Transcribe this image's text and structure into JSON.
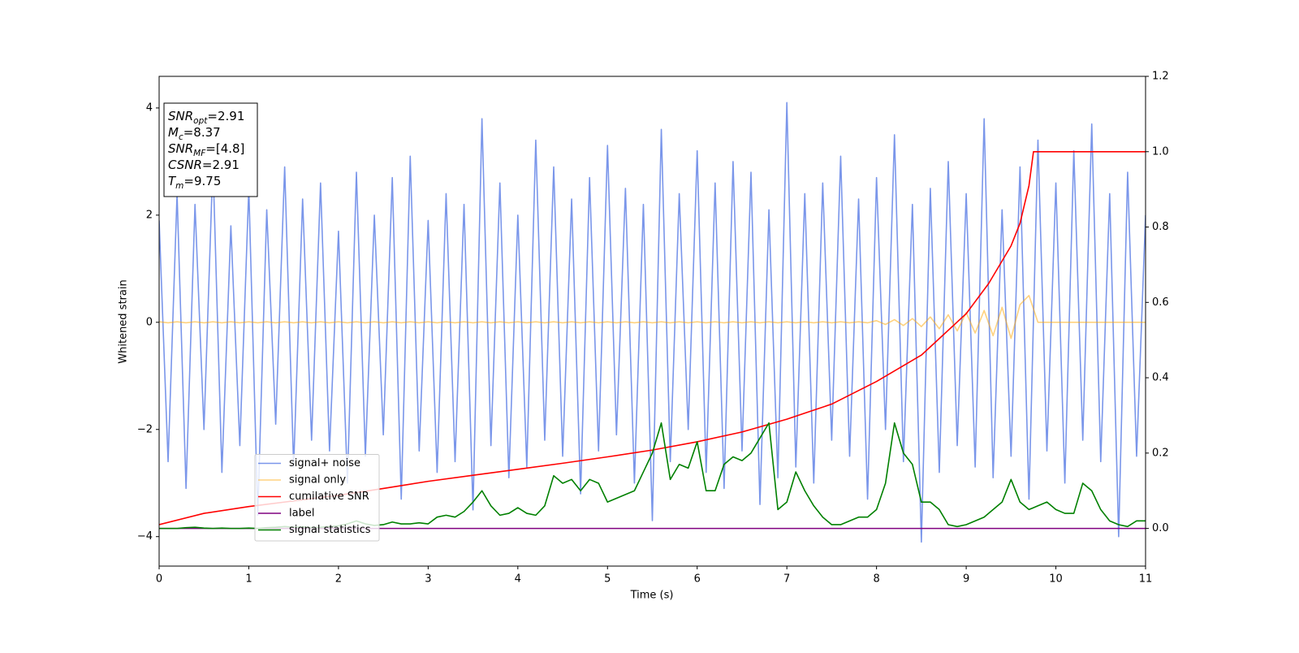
{
  "chart_data": {
    "type": "line",
    "xlabel": "Time (s)",
    "ylabel": "Whitened strain",
    "xlim": [
      0,
      11
    ],
    "xticks": [
      0,
      1,
      2,
      3,
      4,
      5,
      6,
      7,
      8,
      9,
      10,
      11
    ],
    "ylim": [
      -4.55,
      4.59
    ],
    "yticks": [
      {
        "value": -4,
        "label": "−4"
      },
      {
        "value": -2,
        "label": "−2"
      },
      0,
      2,
      4
    ],
    "y2lim": [
      -0.1,
      1.2
    ],
    "y2ticks": [
      {
        "value": 0,
        "label": "0.0"
      },
      {
        "value": 0.2,
        "label": "0.2"
      },
      {
        "value": 0.4,
        "label": "0.4"
      },
      {
        "value": 0.6,
        "label": "0.6"
      },
      {
        "value": 0.8,
        "label": "0.8"
      },
      {
        "value": 1,
        "label": "1.0"
      },
      {
        "value": 1.2,
        "label": "1.2"
      }
    ],
    "legend": "lower left",
    "annotations": [
      {
        "text": "SNR",
        "sub": "opt",
        "rest": "=2.91"
      },
      {
        "text": "M",
        "sub": "c",
        "rest": "=8.37"
      },
      {
        "text": "SNR",
        "sub": "MF",
        "rest": "=[4.8]"
      },
      {
        "text": "CSNR",
        "rest": "=2.91"
      },
      {
        "text": "T",
        "sub": "m",
        "rest": "=9.75"
      }
    ],
    "x": [
      0,
      0.1,
      0.2,
      0.3,
      0.4,
      0.5,
      0.6,
      0.7,
      0.8,
      0.9,
      1,
      1.1,
      1.2,
      1.3,
      1.4,
      1.5,
      1.6,
      1.7,
      1.8,
      1.9,
      2,
      2.1,
      2.2,
      2.3,
      2.4,
      2.5,
      2.6,
      2.7,
      2.8,
      2.9,
      3,
      3.1,
      3.2,
      3.3,
      3.4,
      3.5,
      3.6,
      3.7,
      3.8,
      3.9,
      4,
      4.1,
      4.2,
      4.3,
      4.4,
      4.5,
      4.6,
      4.7,
      4.8,
      4.9,
      5,
      5.1,
      5.2,
      5.3,
      5.4,
      5.5,
      5.6,
      5.7,
      5.8,
      5.9,
      6,
      6.1,
      6.2,
      6.3,
      6.4,
      6.5,
      6.6,
      6.7,
      6.8,
      6.9,
      7,
      7.1,
      7.2,
      7.3,
      7.4,
      7.5,
      7.6,
      7.7,
      7.8,
      7.9,
      8,
      8.1,
      8.2,
      8.3,
      8.4,
      8.5,
      8.6,
      8.7,
      8.8,
      8.9,
      9,
      9.1,
      9.2,
      9.3,
      9.4,
      9.5,
      9.6,
      9.7,
      9.8,
      9.9,
      10,
      10.1,
      10.2,
      10.3,
      10.4,
      10.5,
      10.6,
      10.7,
      10.8,
      10.9,
      11
    ],
    "series": [
      {
        "name": "signal+ noise",
        "color": "#4169e1",
        "alpha": 0.7,
        "axis": "y",
        "values": [
          1.9,
          -2.6,
          2.4,
          -3.1,
          2.2,
          -2.0,
          3.0,
          -2.8,
          1.8,
          -2.3,
          2.5,
          -3.6,
          2.1,
          -1.9,
          2.9,
          -2.7,
          2.3,
          -2.2,
          2.6,
          -2.4,
          1.7,
          -3.0,
          2.8,
          -2.5,
          2.0,
          -2.1,
          2.7,
          -3.3,
          3.1,
          -2.4,
          1.9,
          -2.8,
          2.4,
          -2.6,
          2.2,
          -3.5,
          3.8,
          -2.3,
          2.6,
          -2.9,
          2.0,
          -2.7,
          3.4,
          -2.2,
          2.9,
          -2.5,
          2.3,
          -3.2,
          2.7,
          -2.4,
          3.3,
          -2.1,
          2.5,
          -3.0,
          2.2,
          -3.7,
          3.6,
          -2.6,
          2.4,
          -2.0,
          3.2,
          -2.8,
          2.6,
          -3.1,
          3.0,
          -2.4,
          2.8,
          -3.4,
          2.1,
          -2.9,
          4.1,
          -2.7,
          2.4,
          -3.0,
          2.6,
          -2.2,
          3.1,
          -2.5,
          2.3,
          -3.3,
          2.7,
          -2.0,
          3.5,
          -2.6,
          2.2,
          -4.1,
          2.5,
          -2.8,
          3.0,
          -2.3,
          2.4,
          -2.7,
          3.8,
          -2.9,
          2.1,
          -2.5,
          2.9,
          -3.3,
          3.4,
          -2.4,
          2.6,
          -3.0,
          3.2,
          -2.2,
          3.7,
          -2.6,
          2.4,
          -4.0,
          2.8,
          -2.5,
          2.0
        ]
      },
      {
        "name": "signal only",
        "color": "#ffa500",
        "alpha": 0.5,
        "axis": "y",
        "values": [
          0.01,
          -0.01,
          0.01,
          -0.01,
          0.01,
          -0.01,
          0.01,
          -0.01,
          0.01,
          -0.01,
          0.01,
          -0.01,
          0.01,
          -0.01,
          0.01,
          -0.01,
          0.01,
          -0.01,
          0.01,
          -0.01,
          0.01,
          -0.01,
          0.01,
          -0.01,
          0.01,
          -0.01,
          0.01,
          -0.01,
          0.01,
          -0.01,
          0.01,
          -0.01,
          0.01,
          -0.01,
          0.01,
          -0.01,
          0.01,
          -0.01,
          0.01,
          -0.01,
          0.01,
          -0.01,
          0.01,
          -0.01,
          0.01,
          -0.01,
          0.01,
          -0.01,
          0.01,
          -0.01,
          0.01,
          -0.01,
          0.01,
          -0.01,
          0.01,
          -0.01,
          0.01,
          -0.01,
          0.01,
          -0.01,
          0.01,
          -0.01,
          0.01,
          -0.01,
          0.01,
          -0.01,
          0.01,
          -0.01,
          0.01,
          -0.01,
          0.01,
          -0.01,
          0.01,
          -0.01,
          0.01,
          -0.01,
          0.01,
          -0.01,
          0.01,
          -0.01,
          0.03,
          -0.04,
          0.05,
          -0.06,
          0.07,
          -0.08,
          0.1,
          -0.12,
          0.14,
          -0.16,
          0.18,
          -0.2,
          0.22,
          -0.25,
          0.28,
          -0.3,
          0.33,
          0.5,
          0,
          0,
          0,
          0,
          0,
          0,
          0,
          0,
          0,
          0,
          0,
          0,
          0
        ]
      },
      {
        "name": "cumilative SNR",
        "color": "#ff0000",
        "alpha": 1,
        "axis": "y2",
        "x": [
          0,
          0.5,
          1,
          1.5,
          2,
          2.5,
          3,
          3.5,
          4,
          4.5,
          5,
          5.5,
          6,
          6.5,
          7,
          7.5,
          8,
          8.5,
          9,
          9.25,
          9.5,
          9.6,
          9.7,
          9.75,
          11
        ],
        "values": [
          0.01,
          0.04,
          0.058,
          0.073,
          0.088,
          0.106,
          0.125,
          0.141,
          0.157,
          0.173,
          0.19,
          0.208,
          0.23,
          0.256,
          0.29,
          0.33,
          0.39,
          0.46,
          0.57,
          0.65,
          0.75,
          0.81,
          0.91,
          1.0,
          1.0
        ]
      },
      {
        "name": "label",
        "color": "#800080",
        "alpha": 1,
        "axis": "y2",
        "x": [
          0,
          11
        ],
        "values": [
          0,
          0
        ]
      },
      {
        "name": "signal statistics",
        "color": "#008000",
        "alpha": 1,
        "axis": "y2",
        "values": [
          0,
          0,
          0,
          0.002,
          0.003,
          0.001,
          0,
          0.001,
          0,
          0,
          0.001,
          0,
          0.002,
          0.003,
          0.005,
          0.003,
          0.004,
          0.002,
          0.003,
          0.005,
          0.007,
          0.012,
          0.02,
          0.012,
          0.008,
          0.01,
          0.017,
          0.012,
          0.012,
          0.015,
          0.012,
          0.03,
          0.035,
          0.03,
          0.045,
          0.07,
          0.1,
          0.06,
          0.035,
          0.04,
          0.055,
          0.04,
          0.035,
          0.06,
          0.14,
          0.12,
          0.13,
          0.1,
          0.13,
          0.12,
          0.07,
          0.08,
          0.09,
          0.1,
          0.15,
          0.2,
          0.28,
          0.13,
          0.17,
          0.16,
          0.23,
          0.1,
          0.1,
          0.17,
          0.19,
          0.18,
          0.2,
          0.24,
          0.28,
          0.05,
          0.07,
          0.15,
          0.1,
          0.06,
          0.03,
          0.01,
          0.01,
          0.02,
          0.03,
          0.03,
          0.05,
          0.12,
          0.28,
          0.2,
          0.17,
          0.07,
          0.07,
          0.05,
          0.01,
          0.005,
          0.01,
          0.02,
          0.03,
          0.05,
          0.07,
          0.13,
          0.07,
          0.05,
          0.06,
          0.07,
          0.05,
          0.04,
          0.04,
          0.12,
          0.1,
          0.05,
          0.02,
          0.01,
          0.005,
          0.02,
          0.02
        ]
      }
    ]
  }
}
